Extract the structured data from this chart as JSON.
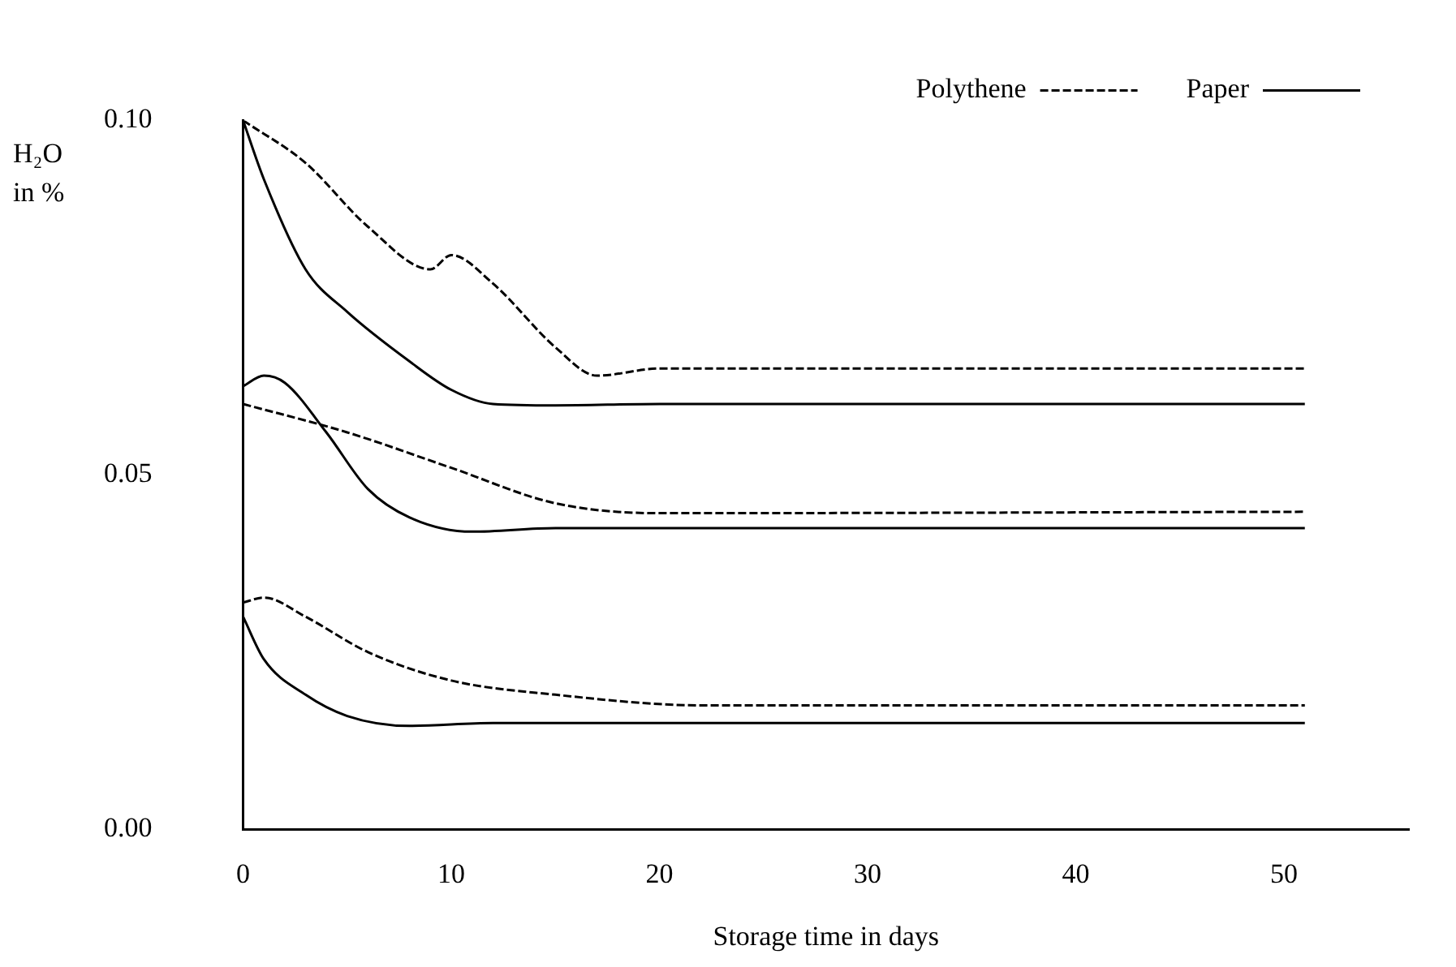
{
  "chart_data": {
    "type": "line",
    "xlabel": "Storage time in days",
    "ylabel": "H₂O in %",
    "xlim": [
      0,
      56
    ],
    "xticks": [
      0,
      10,
      20,
      30,
      40,
      50
    ],
    "ylim": [
      0,
      0.1
    ],
    "yticks": [
      {
        "value": 0,
        "label": "0.00"
      },
      {
        "value": 0.05,
        "label": "0.05"
      },
      {
        "value": 0.1,
        "label": "0.10"
      }
    ],
    "grid": false,
    "legend": "top right",
    "marker": "none",
    "series": [
      {
        "name": "Paper",
        "color": "#000000",
        "line_style": "solid",
        "x": [
          0,
          1,
          3,
          5,
          8,
          10,
          12,
          15,
          20,
          51
        ],
        "values": [
          0.1,
          0.0917,
          0.079,
          0.073,
          0.066,
          0.062,
          0.06,
          0.0598,
          0.06,
          0.06
        ]
      },
      {
        "name": "Polythene",
        "color": "#000000",
        "line_style": "dashed",
        "x": [
          0,
          3,
          6,
          9,
          10,
          12,
          15,
          17,
          20,
          51
        ],
        "values": [
          0.1,
          0.094,
          0.085,
          0.079,
          0.081,
          0.077,
          0.068,
          0.064,
          0.065,
          0.065
        ]
      },
      {
        "color": "#000000",
        "line_style": "solid",
        "x": [
          0,
          1,
          2,
          4,
          6,
          8,
          11,
          15,
          51
        ],
        "values": [
          0.0625,
          0.064,
          0.063,
          0.056,
          0.048,
          0.044,
          0.042,
          0.0425,
          0.0425
        ]
      },
      {
        "color": "#000000",
        "line_style": "dashed",
        "x": [
          0,
          5,
          10,
          15,
          20,
          51
        ],
        "values": [
          0.06,
          0.056,
          0.051,
          0.046,
          0.0446,
          0.0448
        ]
      },
      {
        "color": "#000000",
        "line_style": "solid",
        "x": [
          0,
          1,
          3,
          5,
          8,
          12,
          51
        ],
        "values": [
          0.03,
          0.024,
          0.019,
          0.016,
          0.0146,
          0.015,
          0.015
        ]
      },
      {
        "color": "#000000",
        "line_style": "dashed",
        "x": [
          0,
          1,
          3,
          6,
          10,
          15,
          22,
          51
        ],
        "values": [
          0.032,
          0.0327,
          0.03,
          0.025,
          0.021,
          0.019,
          0.0175,
          0.0175
        ]
      }
    ]
  }
}
